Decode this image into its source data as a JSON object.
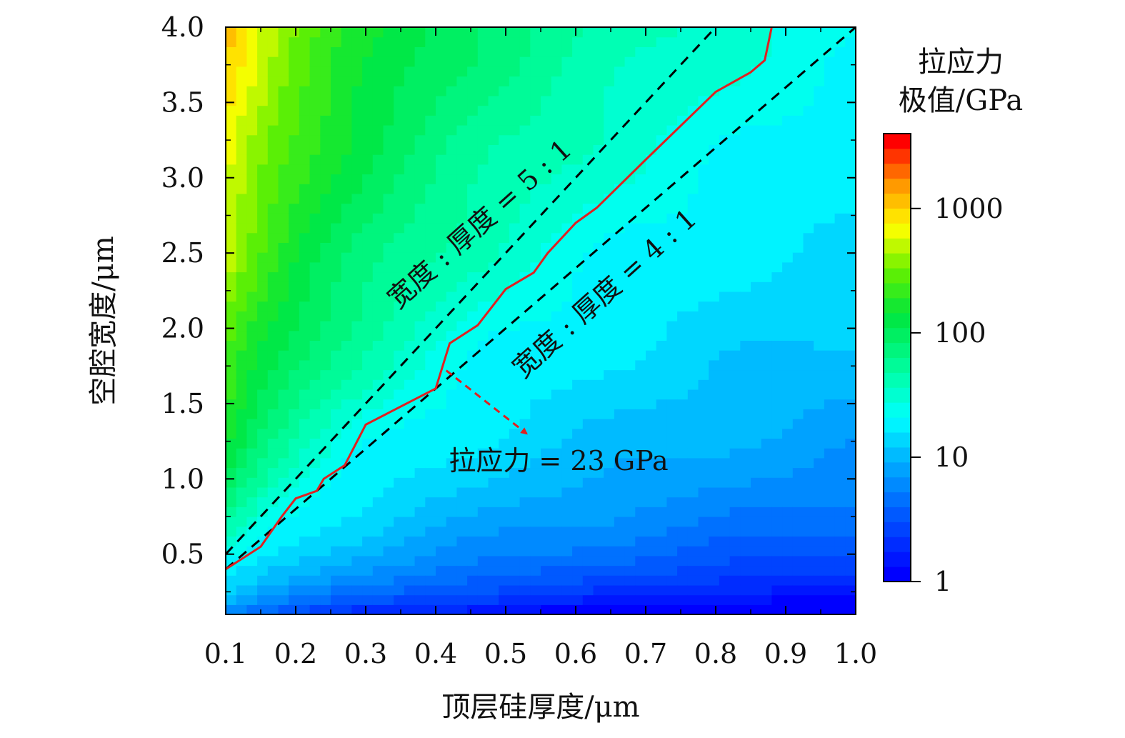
{
  "chart_data": {
    "type": "heatmap",
    "title": "",
    "xlabel": "顶层硅厚度/μm",
    "ylabel": "空腔宽度/μm",
    "xlim": [
      0.1,
      1.0
    ],
    "ylim": [
      0.1,
      4.0
    ],
    "x_ticks": [
      "0.1",
      "0.2",
      "0.3",
      "0.4",
      "0.5",
      "0.6",
      "0.7",
      "0.8",
      "0.9",
      "1.0"
    ],
    "y_ticks": [
      "0.5",
      "1.0",
      "1.5",
      "2.0",
      "2.5",
      "3.0",
      "3.5",
      "4.0"
    ],
    "y_tick_values": [
      0.5,
      1.0,
      1.5,
      2.0,
      2.5,
      3.0,
      3.5,
      4.0
    ],
    "colorbar": {
      "title_line1": "拉应力",
      "title_line2": "极值/GPa",
      "scale": "log",
      "range": [
        1,
        4000
      ],
      "ticks": [
        "1",
        "10",
        "100",
        "1000"
      ],
      "tick_values": [
        1,
        10,
        100,
        1000
      ]
    },
    "series": [
      {
        "name": "拉应力 = 23 GPa contour",
        "color": "#e02020",
        "x": [
          0.1,
          0.15,
          0.18,
          0.2,
          0.23,
          0.24,
          0.27,
          0.3,
          0.35,
          0.4,
          0.42,
          0.46,
          0.5,
          0.54,
          0.56,
          0.6,
          0.63,
          0.7,
          0.76,
          0.8,
          0.85,
          0.87,
          0.88
        ],
        "y": [
          0.4,
          0.55,
          0.75,
          0.87,
          0.92,
          1.0,
          1.09,
          1.36,
          1.48,
          1.6,
          1.9,
          2.02,
          2.26,
          2.37,
          2.5,
          2.7,
          2.8,
          3.12,
          3.39,
          3.57,
          3.7,
          3.78,
          4.0
        ]
      },
      {
        "name": "宽度 : 厚度 = 5 : 1",
        "color": "#000000",
        "dash": true,
        "x": [
          0.1,
          0.8
        ],
        "y": [
          0.5,
          4.0
        ]
      },
      {
        "name": "宽度 : 厚度 = 4 : 1",
        "color": "#000000",
        "dash": true,
        "x": [
          0.1,
          1.0
        ],
        "y": [
          0.4,
          4.0
        ]
      }
    ],
    "annotations": {
      "line_5to1": "宽度 : 厚度 = 5 : 1",
      "line_4to1": "宽度 : 厚度 = 4 : 1",
      "contour": "拉应力 = 23 GPa"
    },
    "arrow": {
      "from": [
        0.415,
        1.72
      ],
      "to": [
        0.53,
        1.3
      ],
      "color": "#e02020"
    },
    "field_description": "log10(stress) increases with cavity width and decreases with top silicon thickness; max ~3000 GPa at (0.1, 4.0), min ~2 GPa at bottom right"
  }
}
